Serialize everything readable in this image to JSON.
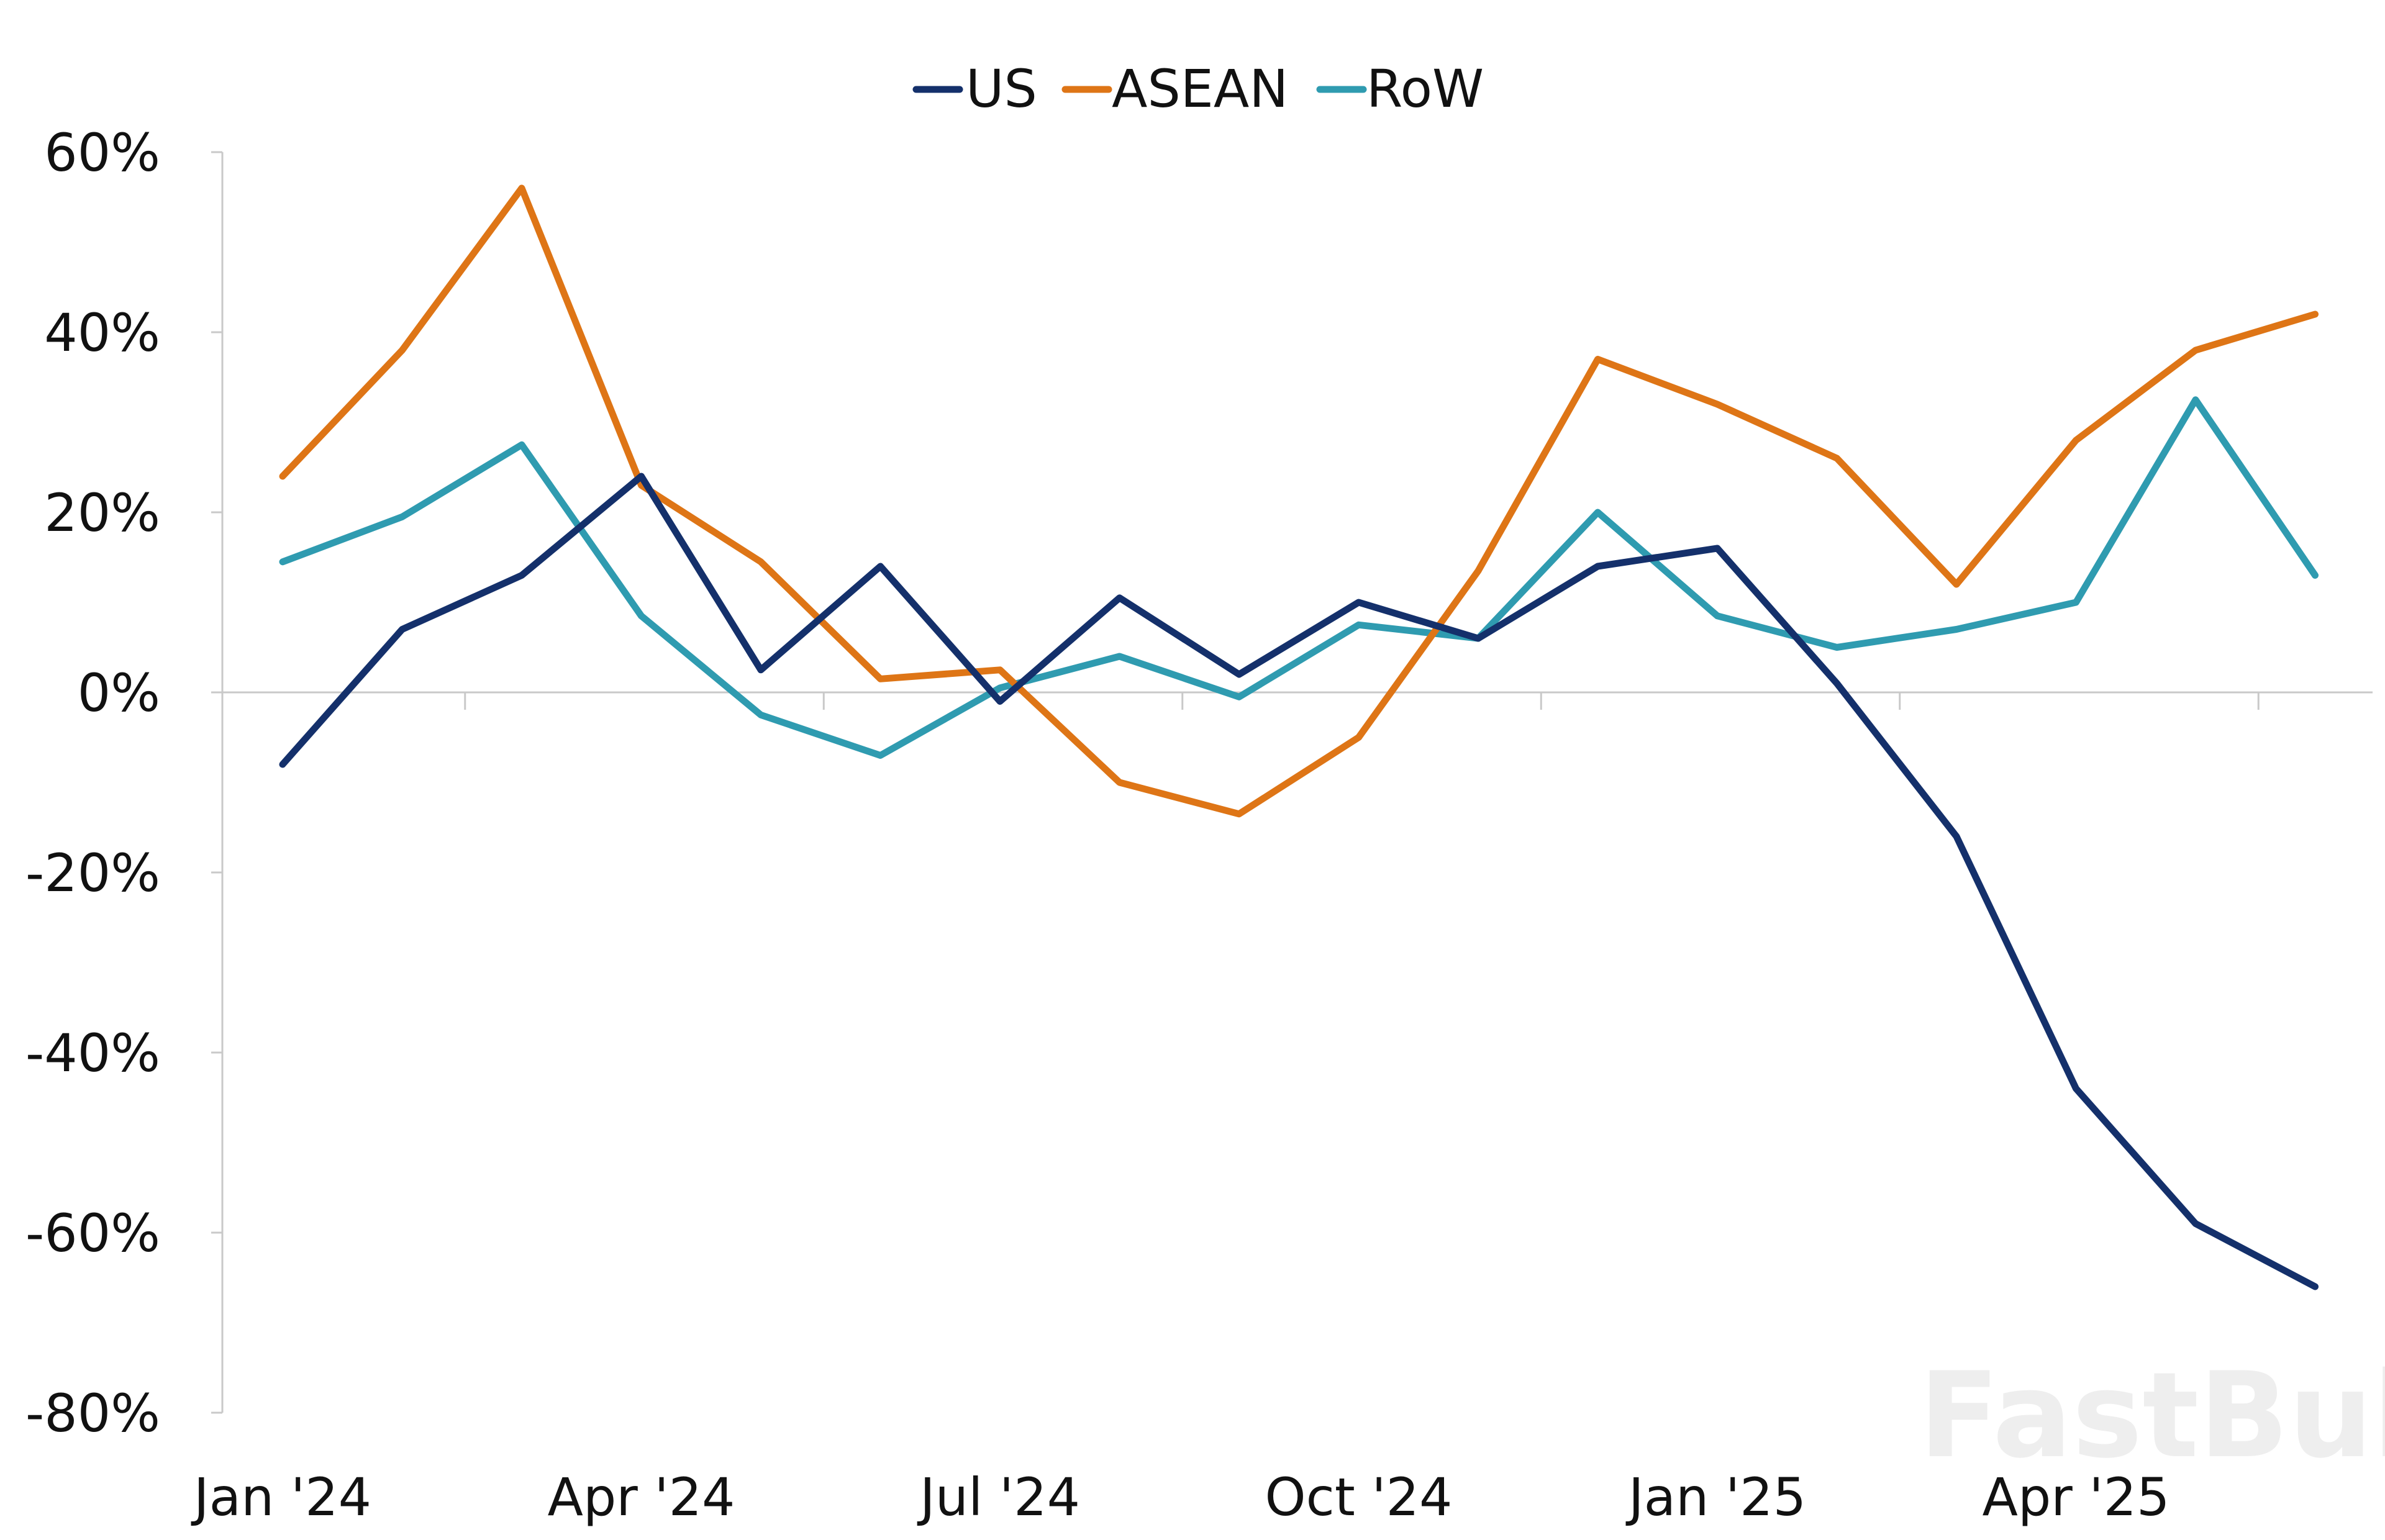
{
  "chart_data": {
    "type": "line",
    "x": [
      "Jan '24",
      "Feb '24",
      "Mar '24",
      "Apr '24",
      "May '24",
      "Jun '24",
      "Jul '24",
      "Aug '24",
      "Sep '24",
      "Oct '24",
      "Nov '24",
      "Dec '24",
      "Jan '25",
      "Feb '25",
      "Mar '25",
      "Apr '25",
      "May '25",
      "Jun '25"
    ],
    "x_tick_labels": [
      "Jan '24",
      "Apr '24",
      "Jul '24",
      "Oct '24",
      "Jan '25",
      "Apr '25"
    ],
    "x_tick_indices": [
      0,
      3,
      6,
      9,
      12,
      15
    ],
    "y_ticks": [
      60,
      40,
      20,
      0,
      -20,
      -40,
      -60,
      -80
    ],
    "y_tick_labels": [
      "60%",
      "40%",
      "20%",
      "0%",
      "-20%",
      "-40%",
      "-60%",
      "-80%"
    ],
    "ylim": [
      -80,
      60
    ],
    "legend_position": "top-center",
    "grid": false,
    "series": [
      {
        "name": "US",
        "color": "#14306b",
        "values": [
          -8,
          7,
          13,
          24,
          2.5,
          14,
          -1,
          10.5,
          2,
          10,
          6,
          14,
          16,
          1,
          -16,
          -44,
          -59,
          -66
        ]
      },
      {
        "name": "ASEAN",
        "color": "#de7516",
        "values": [
          24,
          38,
          56,
          23,
          14.5,
          1.5,
          2.5,
          -10,
          -13.5,
          -5,
          13.5,
          37,
          32,
          26,
          12,
          28,
          38,
          42
        ]
      },
      {
        "name": "RoW",
        "color": "#2f9bb0",
        "values": [
          14.5,
          19.5,
          27.5,
          8.5,
          -2.5,
          -7,
          0.5,
          4,
          -0.5,
          7.5,
          6,
          20,
          8.5,
          5,
          7,
          10,
          32.5,
          13
        ]
      }
    ]
  },
  "watermark": "FastBull"
}
